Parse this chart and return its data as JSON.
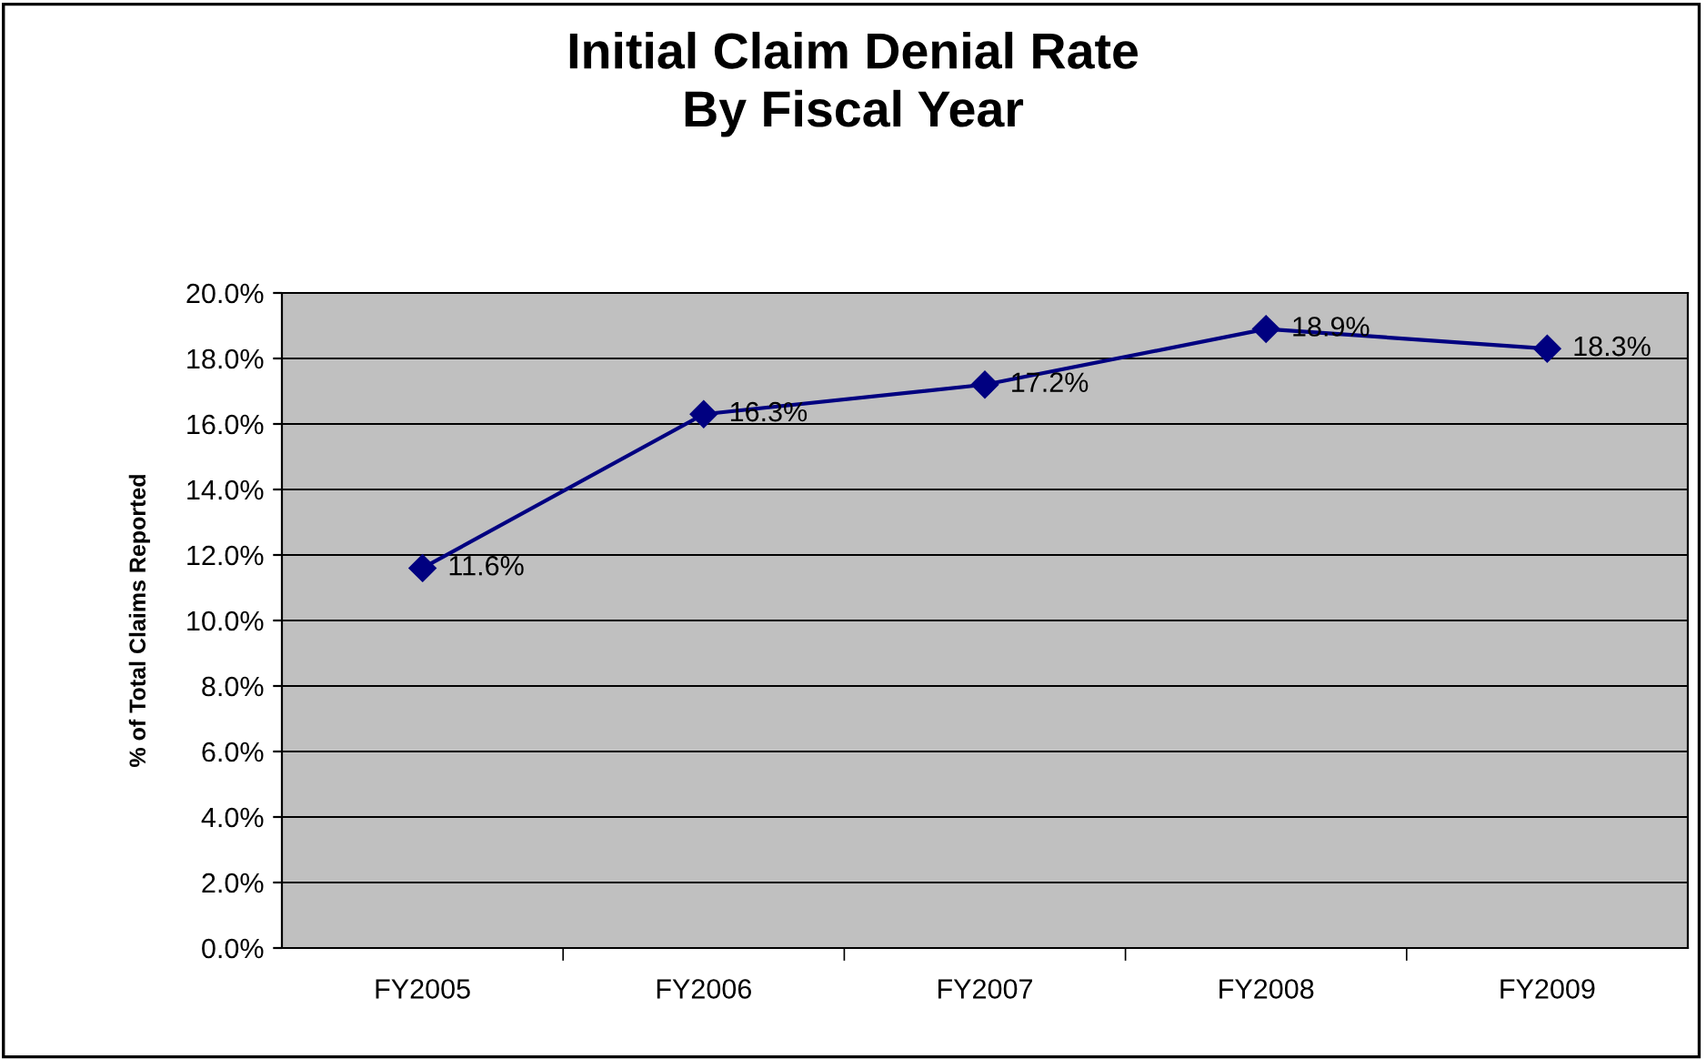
{
  "chart_data": {
    "type": "line",
    "title": "Initial Claim Denial Rate\nBy Fiscal Year",
    "ylabel": "% of Total Claims Reported",
    "categories": [
      "FY2005",
      "FY2006",
      "FY2007",
      "FY2008",
      "FY2009"
    ],
    "series": [
      {
        "color": "#000080",
        "values": [
          11.6,
          16.3,
          17.2,
          18.9,
          18.3
        ],
        "value_labels": [
          "11.6%",
          "16.3%",
          "17.2%",
          "18.9%",
          "18.3%"
        ]
      }
    ],
    "ylim": [
      0,
      20
    ],
    "yticks": [
      {
        "value": 0,
        "label": "0.0%"
      },
      {
        "value": 2,
        "label": "2.0%"
      },
      {
        "value": 4,
        "label": "4.0%"
      },
      {
        "value": 6,
        "label": "6.0%"
      },
      {
        "value": 8,
        "label": "8.0%"
      },
      {
        "value": 10,
        "label": "10.0%"
      },
      {
        "value": 12,
        "label": "12.0%"
      },
      {
        "value": 14,
        "label": "14.0%"
      },
      {
        "value": 16,
        "label": "16.0%"
      },
      {
        "value": 18,
        "label": "18.0%"
      },
      {
        "value": 20,
        "label": "20.0%"
      }
    ],
    "grid": "y",
    "legend": false,
    "marker": "diamond",
    "line_style": "solid"
  }
}
